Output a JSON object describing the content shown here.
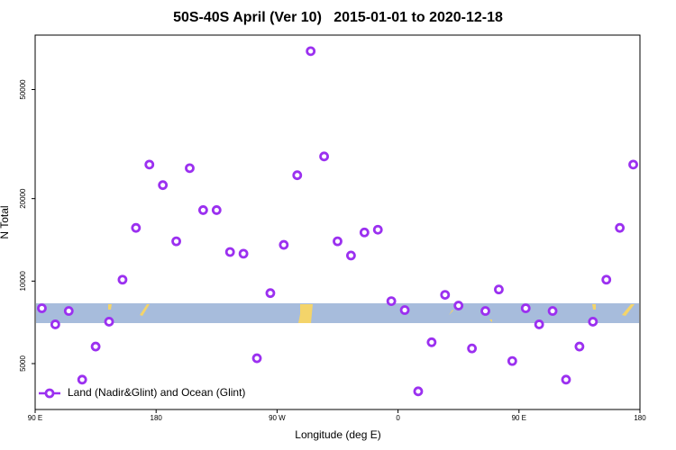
{
  "chart_data": {
    "type": "scatter",
    "title": "50S-40S April (Ver 10)   2015-01-01 to 2020-12-18",
    "x_label": "Longitude (deg E)",
    "y_label": "N Total",
    "log_y": true,
    "xlim": [
      90,
      540
    ],
    "xticks": [
      {
        "value": 90,
        "label": "90 E"
      },
      {
        "value": 180,
        "label": "180"
      },
      {
        "value": 270,
        "label": "90 W"
      },
      {
        "value": 360,
        "label": "0"
      },
      {
        "value": 450,
        "label": "90 E"
      },
      {
        "value": 540,
        "label": "180"
      }
    ],
    "ylim": [
      3400,
      79000
    ],
    "yticks": [
      5000,
      10000,
      20000,
      50000
    ],
    "legend": "bottom-left",
    "series": [
      {
        "name": "Land (Nadir&Glint) and Ocean (Glint)",
        "color": "#9b30f0",
        "x": [
          95,
          105,
          115,
          125,
          135,
          145,
          155,
          165,
          175,
          185,
          195,
          205,
          215,
          225,
          235,
          245,
          255,
          265,
          275,
          285,
          295,
          305,
          315,
          325,
          335,
          345,
          355,
          365,
          375,
          385,
          395,
          405,
          415,
          425,
          435,
          445,
          455,
          465,
          475,
          485,
          495,
          505,
          515,
          525,
          535
        ],
        "values": [
          7960,
          6950,
          7780,
          4370,
          5770,
          7110,
          10120,
          15640,
          26620,
          22400,
          13970,
          25830,
          18160,
          18160,
          12770,
          12590,
          5230,
          9040,
          13560,
          24340,
          69020,
          28500,
          13970,
          12400,
          15050,
          15400,
          8450,
          7840,
          3960,
          5980,
          8910,
          8140,
          5680,
          7780,
          9320,
          5110,
          7960,
          6950,
          7780,
          4370,
          5770,
          7110,
          10120,
          15640,
          26620
        ]
      }
    ]
  }
}
